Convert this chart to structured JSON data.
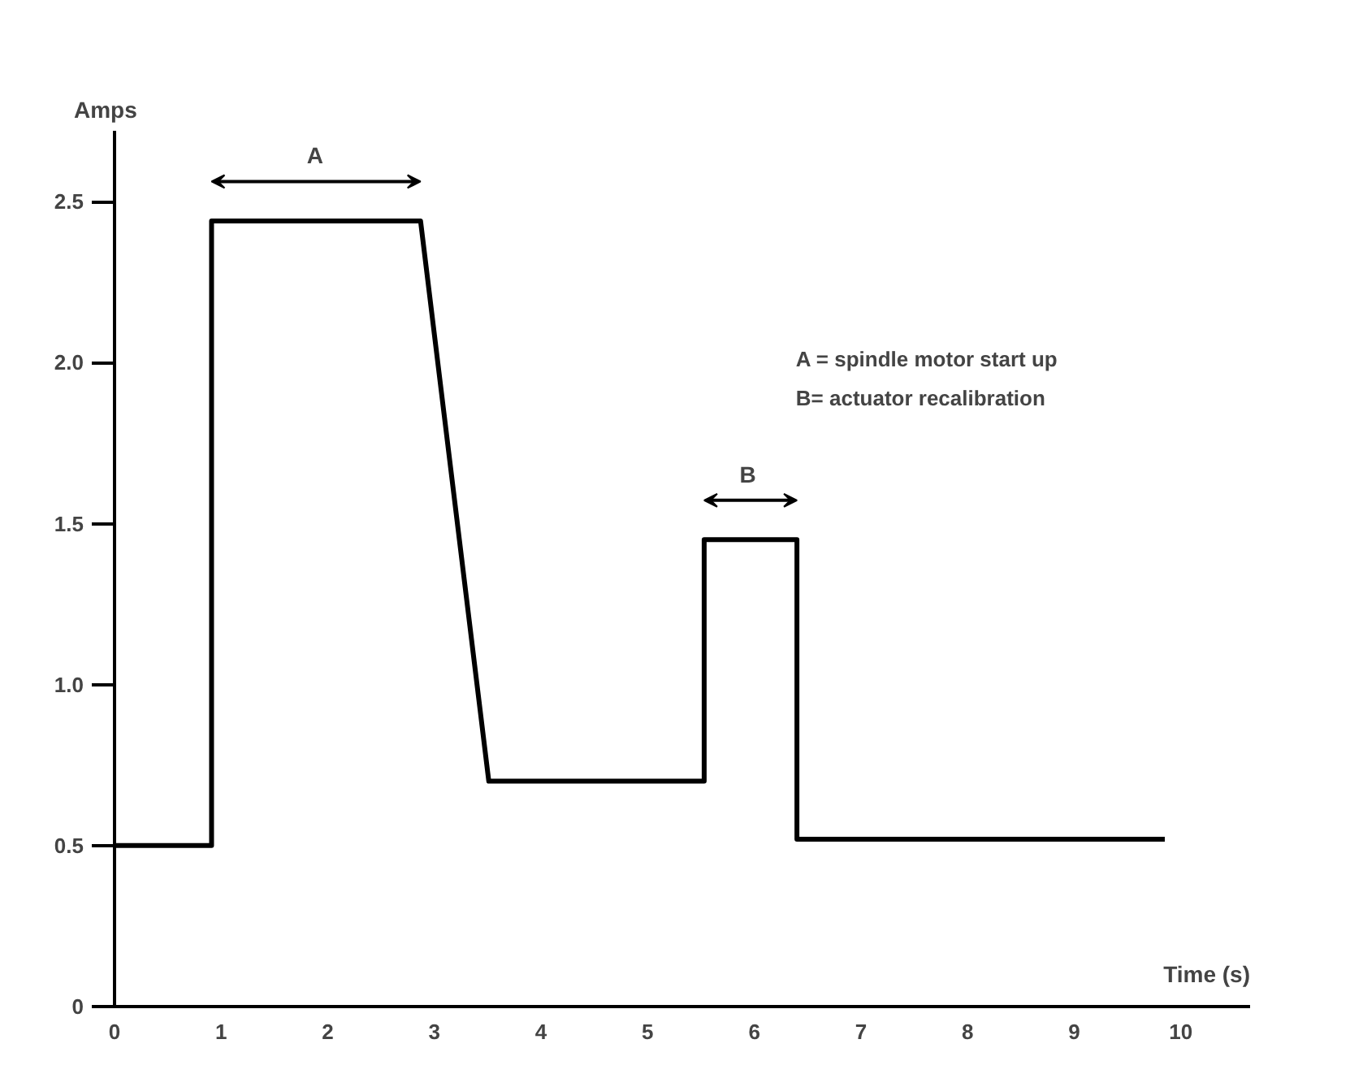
{
  "chart_data": {
    "type": "line",
    "xlabel": "Time (s)",
    "ylabel": "Amps",
    "x": [
      0,
      0.91,
      0.91,
      2.87,
      3.51,
      5.53,
      5.53,
      6.4,
      6.4,
      9.85
    ],
    "series": [
      {
        "color": "#000000",
        "values": [
          0.5,
          0.5,
          2.44,
          2.44,
          0.7,
          0.7,
          1.45,
          1.45,
          0.52,
          0.52
        ]
      }
    ],
    "xlim": [
      0,
      10.65
    ],
    "ylim": [
      0,
      2.72
    ],
    "xticks": [
      0,
      1,
      2,
      3,
      4,
      5,
      6,
      7,
      8,
      9,
      10
    ],
    "yticks": [
      0,
      0.5,
      {
        "value": 1,
        "label": "1.0"
      },
      1.5,
      {
        "value": 2,
        "label": "2.0"
      },
      2.5
    ],
    "annotations": [
      {
        "text": "A",
        "x": 1.88,
        "y": 2.44
      },
      {
        "text": "B",
        "x": 5.94,
        "y": 1.45
      },
      "A = spindle motor start up",
      "B= actuator recalibration"
    ],
    "grid": false,
    "marker": "none",
    "line_style": "solid"
  }
}
